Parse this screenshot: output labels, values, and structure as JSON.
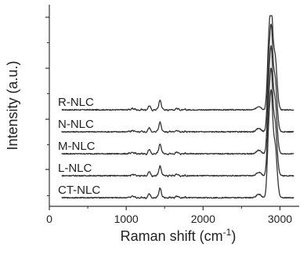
{
  "chart_data": {
    "type": "line",
    "xlabel": "Raman shift (cm",
    "xlabel_sup": "-1",
    "xlabel_close": ")",
    "ylabel": "Intensity (a.u.)",
    "xlim": [
      0,
      3250
    ],
    "x_ticks": [
      0,
      1000,
      2000,
      3000
    ],
    "x_tick_labels": [
      "0",
      "1000",
      "2000",
      "3000"
    ],
    "grid": false,
    "legend": "inline labels above each trace",
    "color": "#333333",
    "series": [
      {
        "name": "R-NLC",
        "offset": 4
      },
      {
        "name": "N-NLC",
        "offset": 3
      },
      {
        "name": "M-NLC",
        "offset": 2
      },
      {
        "name": "L-NLC",
        "offset": 1
      },
      {
        "name": "CT-NLC",
        "offset": 0
      }
    ],
    "peaks": [
      {
        "x": 1080,
        "h": 0.06,
        "w": 20
      },
      {
        "x": 1300,
        "h": 0.18,
        "w": 14
      },
      {
        "x": 1440,
        "h": 0.45,
        "w": 16
      },
      {
        "x": 1655,
        "h": 0.06,
        "w": 18
      },
      {
        "x": 2725,
        "h": 0.16,
        "w": 30
      },
      {
        "x": 2850,
        "h": 2.2,
        "w": 18
      },
      {
        "x": 2885,
        "h": 4.2,
        "w": 20
      },
      {
        "x": 2935,
        "h": 2.4,
        "w": 26
      }
    ]
  }
}
